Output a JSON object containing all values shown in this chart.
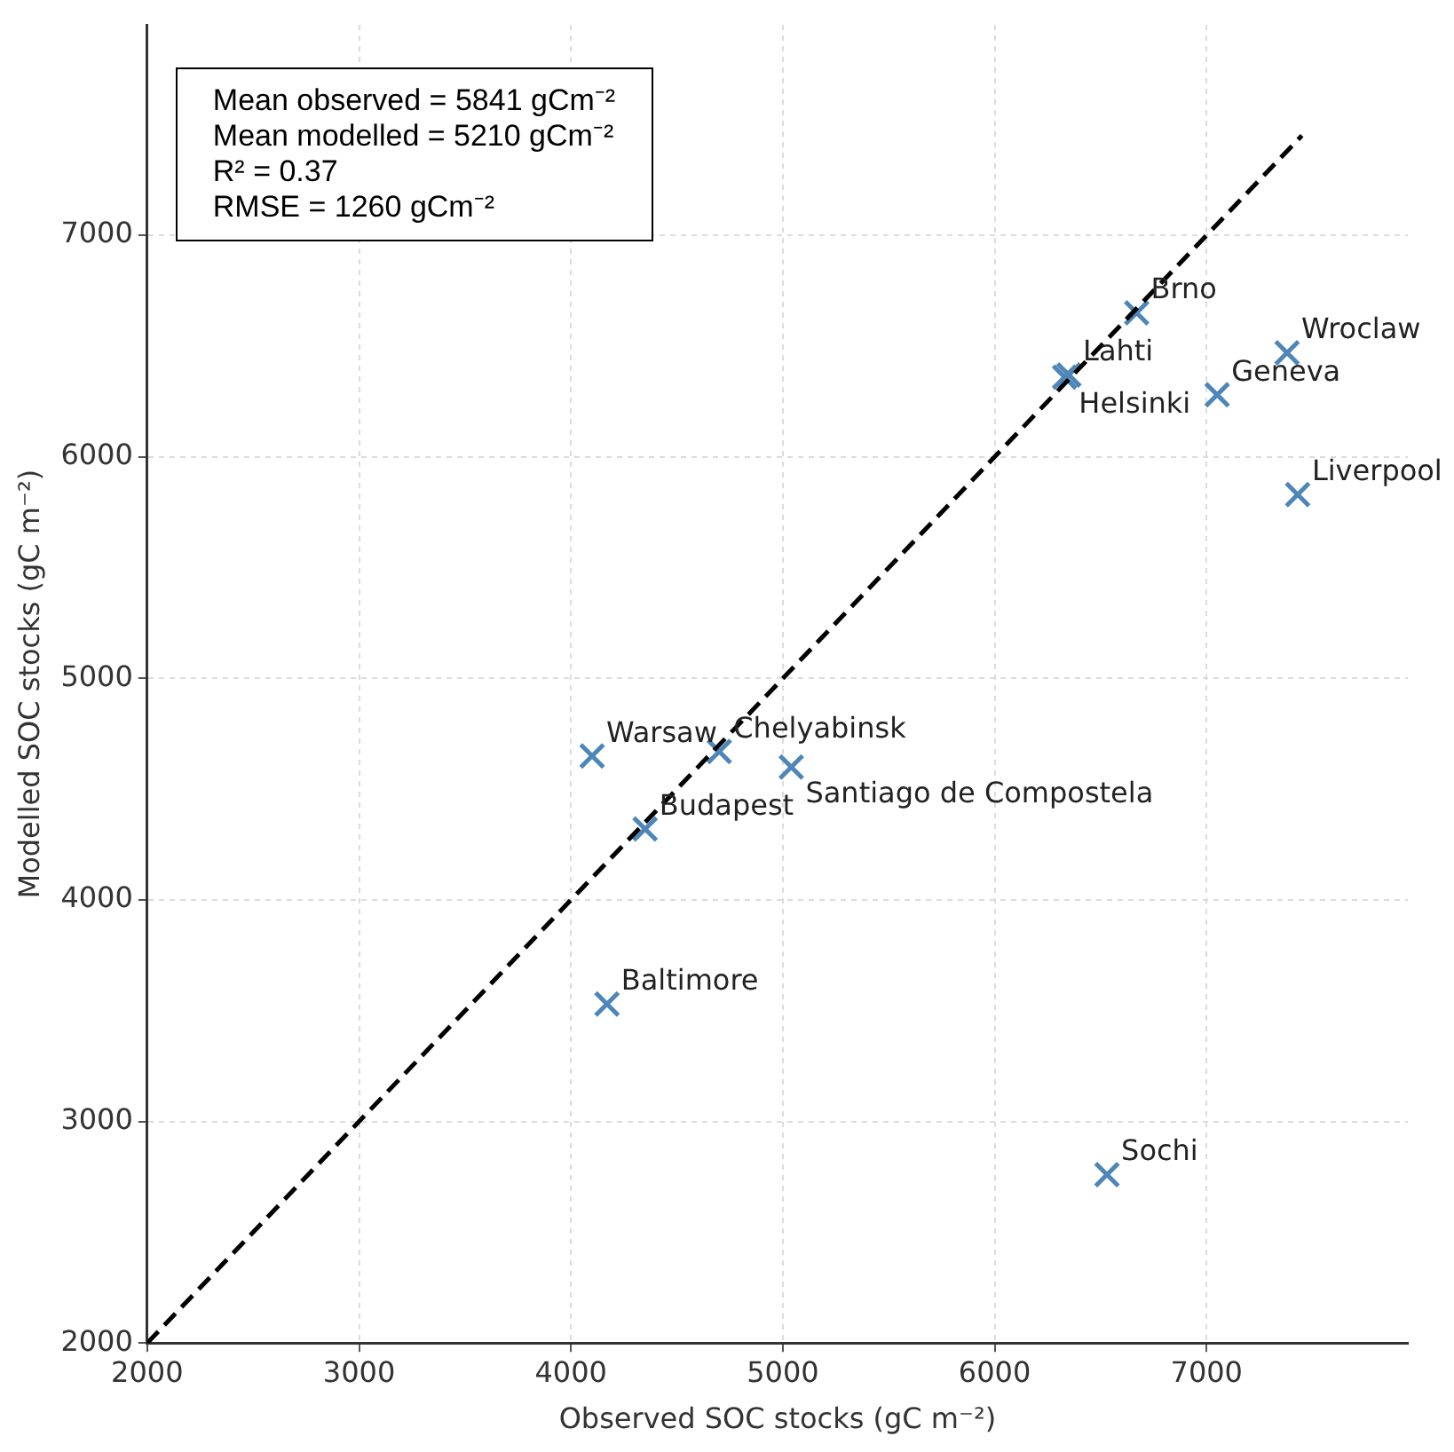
{
  "chart_data": {
    "type": "scatter",
    "xlabel": "Observed SOC stocks (gC m⁻²)",
    "ylabel": "Modelled SOC stocks (gC m⁻²)",
    "xlim": [
      2000,
      7950
    ],
    "ylim": [
      2000,
      7950
    ],
    "xticks": [
      2000,
      3000,
      4000,
      5000,
      6000,
      7000
    ],
    "yticks": [
      2000,
      3000,
      4000,
      5000,
      6000,
      7000
    ],
    "grid": true,
    "legend": false,
    "series": [
      {
        "type": "line",
        "color": "#000000",
        "line_style": "dashed",
        "marker": "none",
        "x": [
          2000,
          7450
        ],
        "values": [
          2000,
          7450
        ]
      },
      {
        "color": "#4f86b8",
        "marker": "cross",
        "x": [
          6670,
          6350,
          6330,
          7050,
          7380,
          7430,
          4100,
          4700,
          5040,
          4350,
          4170,
          6530
        ],
        "values": [
          6650,
          6370,
          6360,
          6280,
          6470,
          5830,
          4650,
          4670,
          4600,
          4320,
          3530,
          2760
        ]
      }
    ],
    "annotations": [
      "Mean observed = 5841 gCm⁻²",
      "Mean modelled = 5210 gCm⁻²",
      "R² = 0.37",
      "RMSE = 1260 gCm⁻²",
      {
        "text": "Brno",
        "x": 6670,
        "y": 6650
      },
      {
        "text": "Lahti",
        "x": 6350,
        "y": 6370
      },
      {
        "text": "Helsinki",
        "x": 6330,
        "y": 6360
      },
      {
        "text": "Geneva",
        "x": 7050,
        "y": 6280
      },
      {
        "text": "Wroclaw",
        "x": 7380,
        "y": 6470
      },
      {
        "text": "Liverpool",
        "x": 7430,
        "y": 5830
      },
      {
        "text": "Warsaw",
        "x": 4100,
        "y": 4650
      },
      {
        "text": "Chelyabinsk",
        "x": 4700,
        "y": 4670
      },
      {
        "text": "Santiago de Compostela",
        "x": 5040,
        "y": 4600
      },
      {
        "text": "Budapest",
        "x": 4350,
        "y": 4320
      },
      {
        "text": "Baltimore",
        "x": 4170,
        "y": 3530
      },
      {
        "text": "Sochi",
        "x": 6530,
        "y": 2760
      }
    ]
  }
}
